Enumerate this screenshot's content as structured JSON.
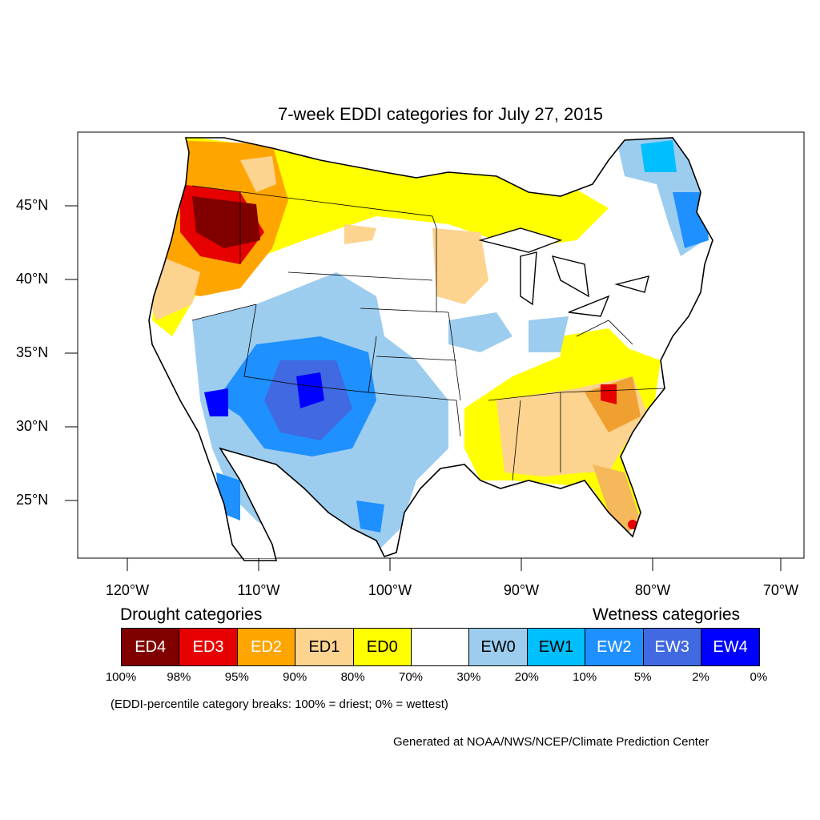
{
  "title": "7-week EDDI categories for July 27, 2015",
  "lat_labels": [
    "45°N",
    "40°N",
    "35°N",
    "30°N",
    "25°N"
  ],
  "lon_labels": [
    "120°W",
    "110°W",
    "100°W",
    "90°W",
    "80°W",
    "70°W"
  ],
  "legend": {
    "drought_title": "Drought categories",
    "wetness_title": "Wetness categories",
    "categories": [
      {
        "label": "ED4",
        "color": "#800000",
        "text_color": "#ffffff"
      },
      {
        "label": "ED3",
        "color": "#e60000",
        "text_color": "#ffffff"
      },
      {
        "label": "ED2",
        "color": "#ffa500",
        "text_color": "#ffffff"
      },
      {
        "label": "ED1",
        "color": "#fcd38f",
        "text_color": "#000000"
      },
      {
        "label": "ED0",
        "color": "#ffff00",
        "text_color": "#000000"
      },
      {
        "label": "",
        "color": "#ffffff",
        "text_color": "#000000"
      },
      {
        "label": "EW0",
        "color": "#9ccdef",
        "text_color": "#000000"
      },
      {
        "label": "EW1",
        "color": "#00bfff",
        "text_color": "#000000"
      },
      {
        "label": "EW2",
        "color": "#1e90ff",
        "text_color": "#ffffff"
      },
      {
        "label": "EW3",
        "color": "#4169e1",
        "text_color": "#ffffff"
      },
      {
        "label": "EW4",
        "color": "#0000ff",
        "text_color": "#ffffff"
      }
    ],
    "breaks": [
      "100%",
      "98%",
      "95%",
      "90%",
      "80%",
      "70%",
      "30%",
      "20%",
      "10%",
      "5%",
      "2%",
      "0%"
    ],
    "note": "(EDDI-percentile category breaks: 100% = driest; 0% = wettest)"
  },
  "credit": "Generated at NOAA/NWS/NCEP/Climate Prediction Center"
}
